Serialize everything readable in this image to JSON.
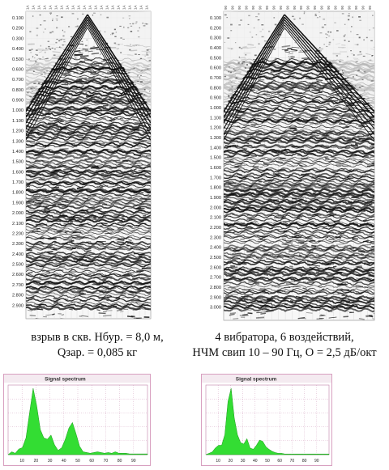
{
  "left": {
    "time_labels": [
      "0.100",
      "0.200",
      "0.300",
      "0.400",
      "0.500",
      "0.600",
      "0.700",
      "0.800",
      "0.900",
      "1.000",
      "1.100",
      "1.200",
      "1.300",
      "1.400",
      "1.500",
      "1.600",
      "1.700",
      "1.800",
      "1.900",
      "2.000",
      "2.100",
      "2.200",
      "2.300",
      "2.400",
      "2.500",
      "2.600",
      "2.700",
      "2.800",
      "2.900"
    ],
    "trace_labels": [
      "1A",
      "1A",
      "1A",
      "1A",
      "1A",
      "1A",
      "1A",
      "1A",
      "1A",
      "1A",
      "1A",
      "1A",
      "1A",
      "1A",
      "1A",
      "1A",
      "1A",
      "1A",
      "1A",
      "1A",
      "1A",
      "1A"
    ],
    "caption_line1": "взрыв в скв. Нбур. = 8,0 м,",
    "caption_line2": "Qзар. = 0,085 кг",
    "spectrum": {
      "title": "Signal spectrum",
      "x_ticks": [
        "10",
        "20",
        "30",
        "40",
        "50",
        "60",
        "70",
        "80",
        "90"
      ],
      "fill_color": "#33dd33",
      "series": [
        0,
        4,
        2,
        8,
        10,
        24,
        60,
        95,
        70,
        36,
        24,
        22,
        28,
        14,
        6,
        10,
        22,
        38,
        46,
        30,
        12,
        4,
        3,
        2,
        3,
        4,
        3,
        2,
        3,
        2,
        4,
        2,
        2,
        2,
        1,
        1,
        1,
        1,
        1,
        1
      ]
    }
  },
  "right": {
    "time_labels": [
      "0.100",
      "0.200",
      "0.300",
      "0.400",
      "0.500",
      "0.600",
      "0.700",
      "0.800",
      "0.900",
      "1.000",
      "1.100",
      "1.200",
      "1.300",
      "1.400",
      "1.500",
      "1.600",
      "1.700",
      "1.800",
      "1.900",
      "2.000",
      "2.100",
      "2.200",
      "2.300",
      "2.400",
      "2.500",
      "2.600",
      "2.700",
      "2.800",
      "2.900",
      "3.000"
    ],
    "trace_labels": [
      "90",
      "90",
      "90",
      "90",
      "90",
      "90",
      "90",
      "90",
      "90",
      "90",
      "90",
      "90",
      "90",
      "90",
      "90",
      "90",
      "90",
      "90",
      "90",
      "90",
      "90",
      "90"
    ],
    "caption_line1": "4 вибратора, 6 воздействий,",
    "caption_line2": "НЧМ свип 10 – 90 Гц, O = 2,5 дБ/окт",
    "spectrum": {
      "title": "Signal spectrum",
      "x_ticks": [
        "10",
        "20",
        "30",
        "40",
        "50",
        "60",
        "70",
        "80",
        "90"
      ],
      "fill_color": "#33dd33",
      "series": [
        0,
        2,
        4,
        10,
        14,
        14,
        30,
        80,
        100,
        55,
        30,
        18,
        16,
        24,
        10,
        8,
        14,
        22,
        20,
        12,
        8,
        5,
        3,
        2,
        2,
        1,
        1,
        1,
        1,
        1,
        1,
        1,
        1,
        1,
        1,
        1,
        1,
        1,
        1,
        1
      ]
    }
  },
  "colors": {
    "background": "#ffffff",
    "trace": "#111111",
    "spectrum_bg": "#ffffff",
    "spectrum_frame": "#d8a0c0"
  }
}
